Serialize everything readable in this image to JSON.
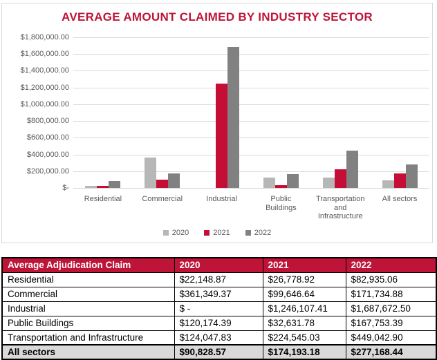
{
  "chart_data": {
    "type": "bar",
    "title": "AVERAGE AMOUNT CLAIMED BY INDUSTRY SECTOR",
    "categories": [
      "Residential",
      "Commercial",
      "Industrial",
      "Public Buildings",
      "Transportation and Infrastructure",
      "All sectors"
    ],
    "categories_display": [
      "Residential",
      "Commercial",
      "Industrial",
      "Public\nBuildings",
      "Transportation\nand\nInfrastructure",
      "All sectors"
    ],
    "series": [
      {
        "name": "2020",
        "color": "#b7b7b7",
        "values": [
          22148.87,
          361349.37,
          0,
          120174.39,
          124047.83,
          90828.57
        ]
      },
      {
        "name": "2021",
        "color": "#c40e36",
        "values": [
          26778.92,
          99646.64,
          1246107.41,
          32631.78,
          224545.03,
          174193.18
        ]
      },
      {
        "name": "2022",
        "color": "#818181",
        "values": [
          82935.06,
          171734.88,
          1687672.5,
          167753.39,
          449042.9,
          277168.44
        ]
      }
    ],
    "xlabel": "",
    "ylabel": "",
    "ylim": [
      0,
      1800000
    ],
    "ytick_step": 200000,
    "ytick_labels_top_down": [
      "$1,800,000.00",
      "$1,600,000.00",
      "$1,400,000.00",
      "$1,200,000.00",
      "$1,000,000.00",
      "$800,000.00",
      "$600,000.00",
      "$400,000.00",
      "$200,000.00",
      "$-"
    ],
    "grid": true,
    "legend_position": "bottom",
    "legend_entries": [
      "2020",
      "2021",
      "2022"
    ]
  },
  "table": {
    "headers": [
      "Average Adjudication Claim",
      "2020",
      "2021",
      "2022"
    ],
    "rows": [
      [
        "Residential",
        "$22,148.87",
        "$26,778.92",
        "$82,935.06"
      ],
      [
        "Commercial",
        "$361,349.37",
        "$99,646.64",
        "$171,734.88"
      ],
      [
        "Industrial",
        "$ -",
        "$1,246,107.41",
        "$1,687,672.50"
      ],
      [
        "Public Buildings",
        "$120,174.39",
        "$32,631.78",
        "$167,753.39"
      ],
      [
        "Transportation and Infrastructure",
        "$124,047.83",
        "$224,545.03",
        "$449,042.90"
      ]
    ],
    "footer": [
      "All sectors",
      "$90,828.57",
      "$174,193.18",
      "$277,168.44"
    ]
  },
  "colors": {
    "accent": "#be1438",
    "gridline": "#d9d9d9",
    "axis_text": "#595959",
    "footer_bg": "#d9d9d9"
  }
}
